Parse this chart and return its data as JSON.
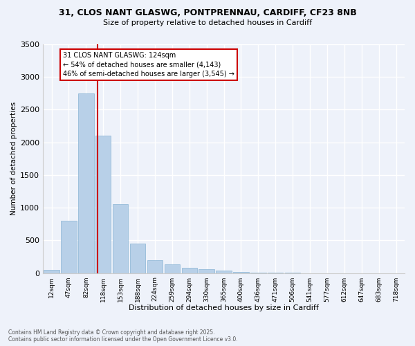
{
  "title_line1": "31, CLOS NANT GLASWG, PONTPRENNAU, CARDIFF, CF23 8NB",
  "title_line2": "Size of property relative to detached houses in Cardiff",
  "xlabel": "Distribution of detached houses by size in Cardiff",
  "ylabel": "Number of detached properties",
  "categories": [
    "12sqm",
    "47sqm",
    "82sqm",
    "118sqm",
    "153sqm",
    "188sqm",
    "224sqm",
    "259sqm",
    "294sqm",
    "330sqm",
    "365sqm",
    "400sqm",
    "436sqm",
    "471sqm",
    "506sqm",
    "541sqm",
    "577sqm",
    "612sqm",
    "647sqm",
    "683sqm",
    "718sqm"
  ],
  "values": [
    50,
    800,
    2750,
    2100,
    1050,
    450,
    200,
    130,
    80,
    60,
    40,
    20,
    10,
    5,
    2,
    1,
    1,
    0,
    0,
    0,
    0
  ],
  "bar_color": "#b8d0e8",
  "bar_edge_color": "#8ab4d4",
  "annotation_line1": "31 CLOS NANT GLASWG: 124sqm",
  "annotation_line2": "← 54% of detached houses are smaller (4,143)",
  "annotation_line3": "46% of semi-detached houses are larger (3,545) →",
  "marker_color": "#cc0000",
  "ylim": [
    0,
    3500
  ],
  "yticks": [
    0,
    500,
    1000,
    1500,
    2000,
    2500,
    3000,
    3500
  ],
  "background_color": "#eef2fa",
  "grid_color": "#ffffff",
  "footer_line1": "Contains HM Land Registry data © Crown copyright and database right 2025.",
  "footer_line2": "Contains public sector information licensed under the Open Government Licence v3.0."
}
